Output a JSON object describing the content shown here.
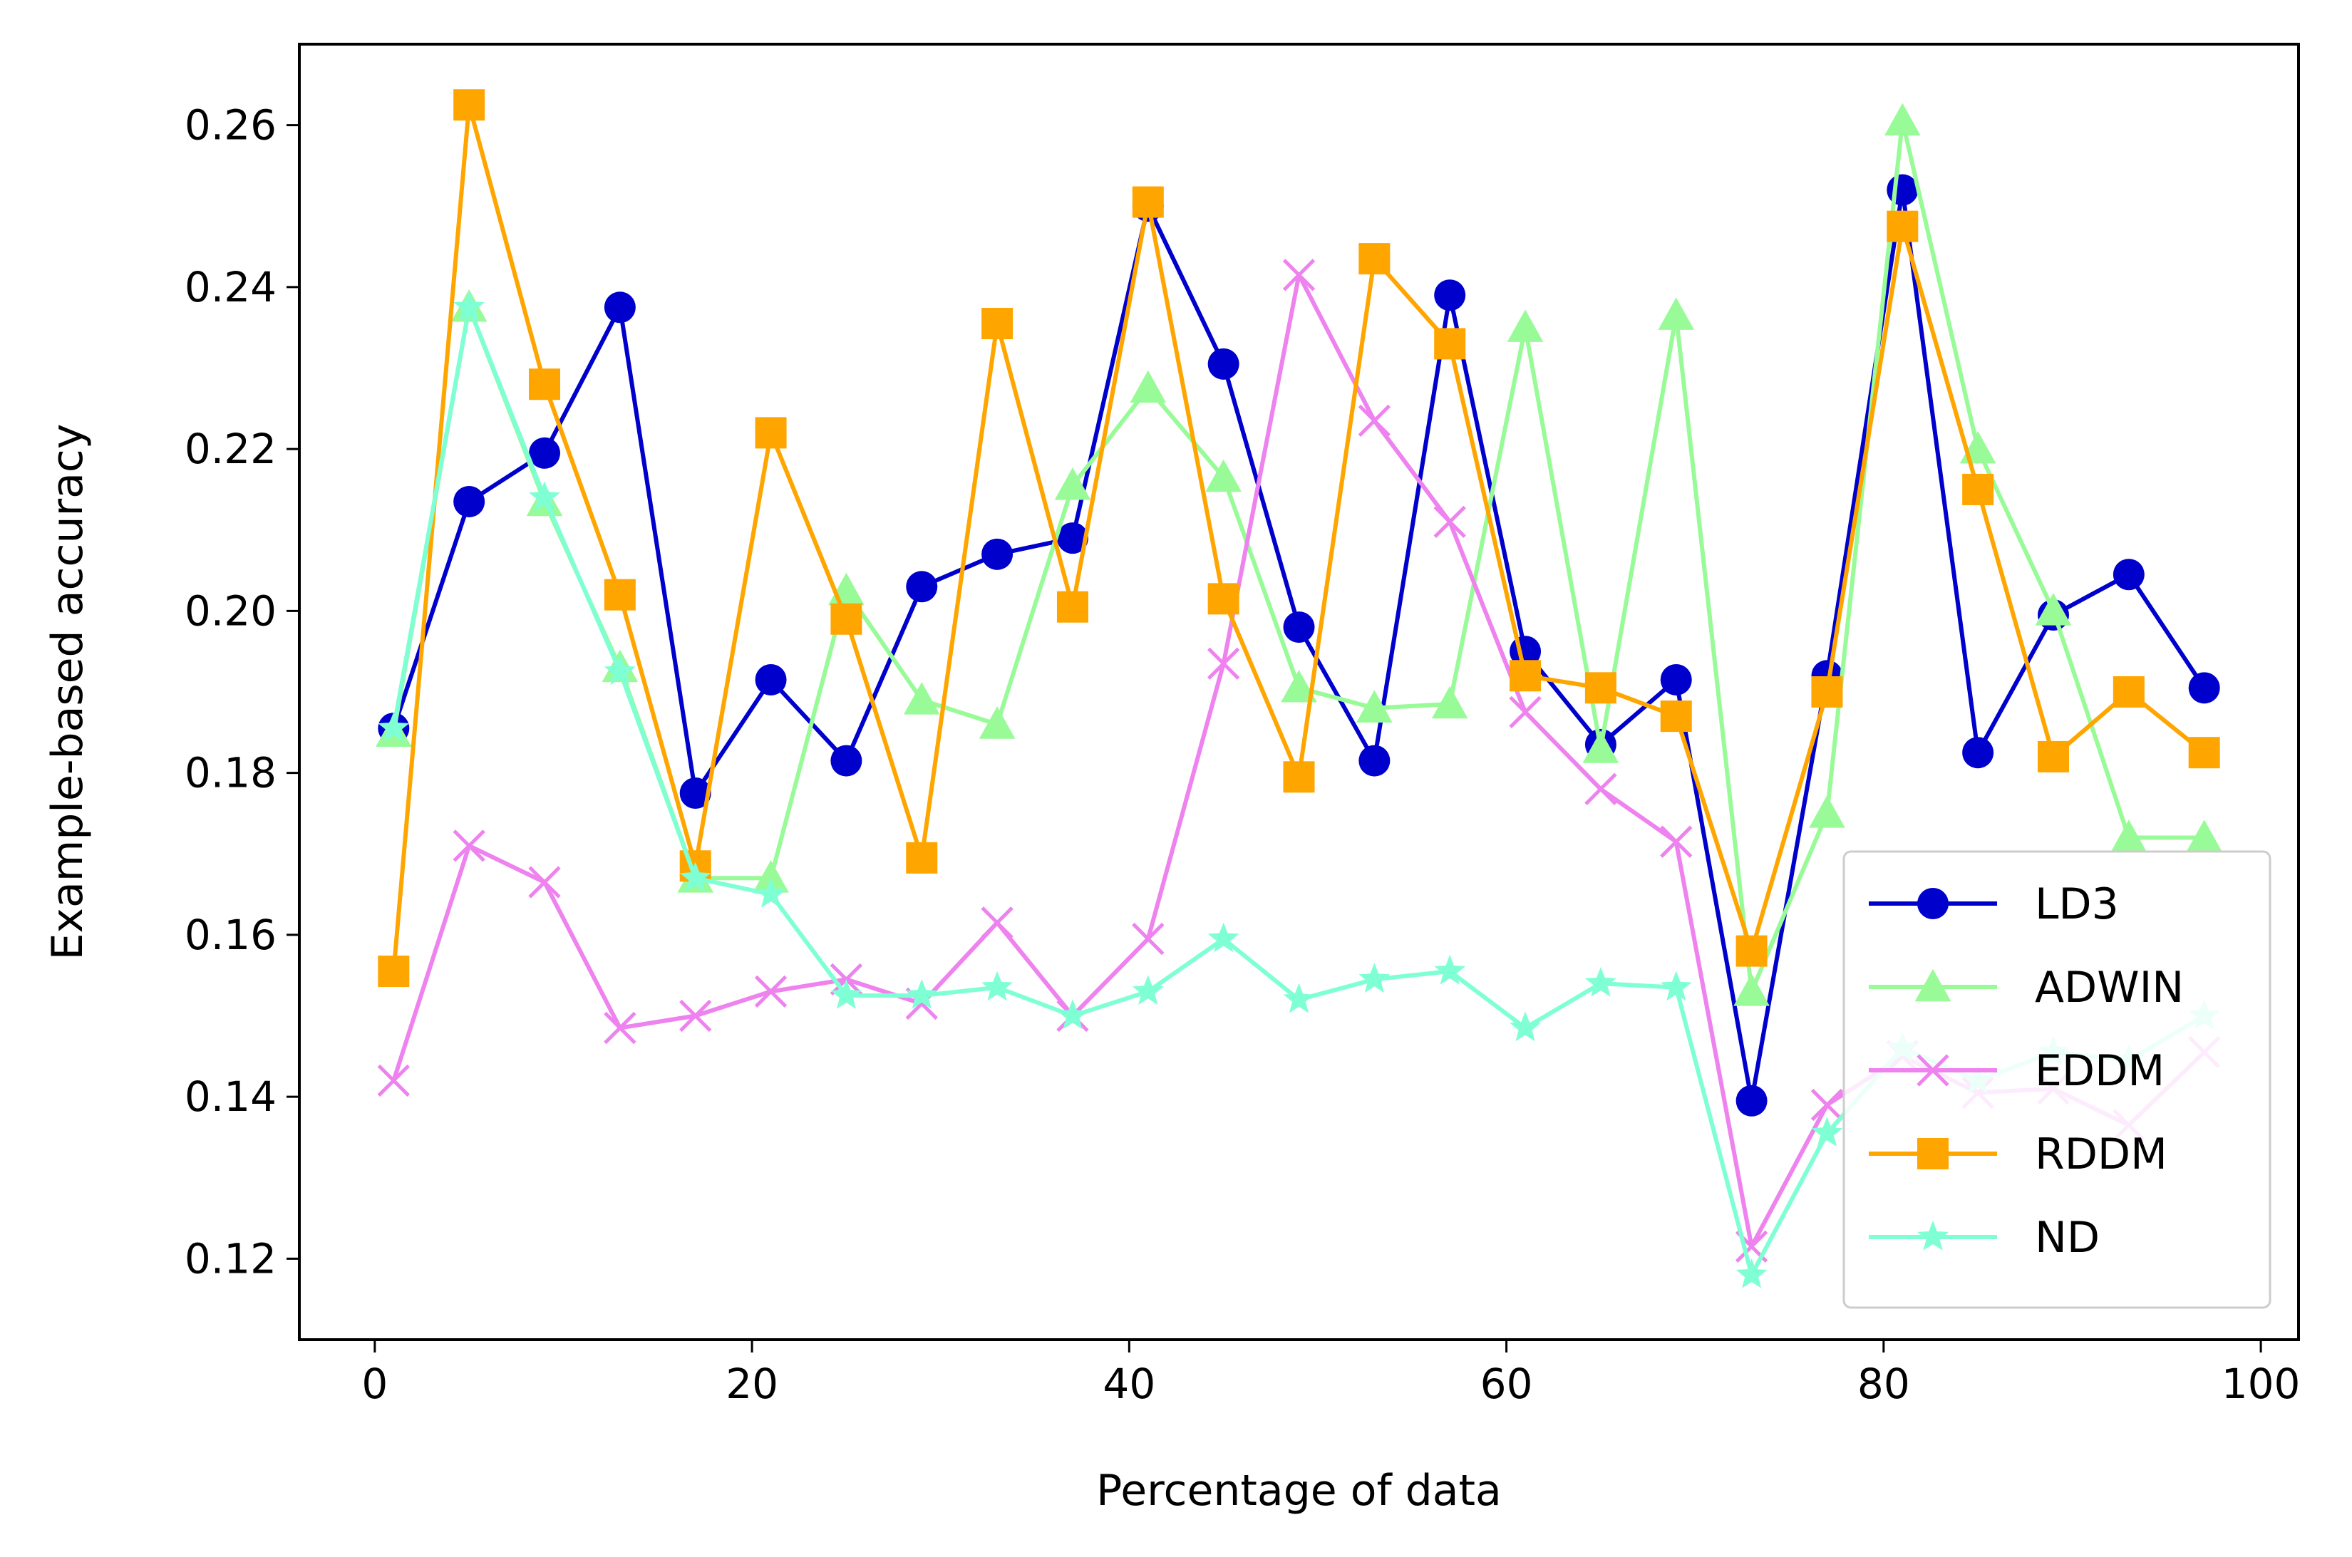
{
  "chart_data": {
    "type": "line",
    "xlabel": "Percentage of data",
    "ylabel": "Example-based accuracy",
    "xlim": [
      -4,
      102
    ],
    "ylim": [
      0.11,
      0.27
    ],
    "xticks": [
      0,
      20,
      40,
      60,
      80,
      100
    ],
    "yticks": [
      0.12,
      0.14,
      0.16,
      0.18,
      0.2,
      0.22,
      0.24,
      0.26
    ],
    "ytick_labels": [
      "0.12",
      "0.14",
      "0.16",
      "0.18",
      "0.20",
      "0.22",
      "0.24",
      "0.26"
    ],
    "grid": false,
    "legend_position": "lower-right",
    "x": [
      1,
      5,
      9,
      13,
      17,
      21,
      25,
      29,
      33,
      37,
      41,
      45,
      49,
      53,
      57,
      61,
      65,
      69,
      73,
      77,
      81,
      85,
      89,
      93,
      97
    ],
    "series": [
      {
        "name": "LD3",
        "color": "#0000cd",
        "marker": "circle",
        "values": [
          0.1855,
          0.2135,
          0.2195,
          0.2375,
          0.1775,
          0.1915,
          0.1815,
          0.203,
          0.207,
          0.209,
          0.25,
          0.2305,
          0.198,
          0.1815,
          0.239,
          0.195,
          0.1835,
          0.1915,
          0.1395,
          0.192,
          0.252,
          0.1825,
          0.1995,
          0.2045,
          0.1905
        ]
      },
      {
        "name": "ADWIN",
        "color": "#98fb98",
        "marker": "triangle",
        "values": [
          0.185,
          0.2375,
          0.2135,
          0.193,
          0.167,
          0.167,
          0.2025,
          0.189,
          0.186,
          0.2155,
          0.2275,
          0.2165,
          0.1905,
          0.188,
          0.1885,
          0.235,
          0.183,
          0.2365,
          0.153,
          0.175,
          0.2605,
          0.22,
          0.2,
          0.172,
          0.172
        ]
      },
      {
        "name": "EDDM",
        "color": "#ee82ee",
        "marker": "x",
        "values": [
          0.142,
          0.171,
          0.1665,
          0.1485,
          0.15,
          0.153,
          0.1545,
          0.1515,
          0.1615,
          0.15,
          0.1595,
          0.1935,
          0.2415,
          0.2235,
          0.211,
          0.1875,
          0.178,
          0.1715,
          0.1215,
          0.139,
          0.145,
          0.1405,
          0.141,
          0.1365,
          0.1455
        ]
      },
      {
        "name": "RDDM",
        "color": "#ffa500",
        "marker": "square",
        "values": [
          0.1555,
          0.2625,
          0.228,
          0.202,
          0.1685,
          0.222,
          0.199,
          0.1695,
          0.2355,
          0.2005,
          0.2505,
          0.2015,
          0.1795,
          0.2435,
          0.233,
          0.192,
          0.1905,
          0.187,
          0.158,
          0.19,
          0.2475,
          0.215,
          0.182,
          0.19,
          0.1825
        ]
      },
      {
        "name": "ND",
        "color": "#7fffd4",
        "marker": "star",
        "values": [
          0.1855,
          0.2375,
          0.214,
          0.1925,
          0.167,
          0.165,
          0.1525,
          0.1525,
          0.1535,
          0.15,
          0.153,
          0.1595,
          0.152,
          0.1545,
          0.1555,
          0.1485,
          0.154,
          0.1535,
          0.118,
          0.1355,
          0.146,
          0.142,
          0.1455,
          0.1445,
          0.15
        ]
      }
    ]
  }
}
